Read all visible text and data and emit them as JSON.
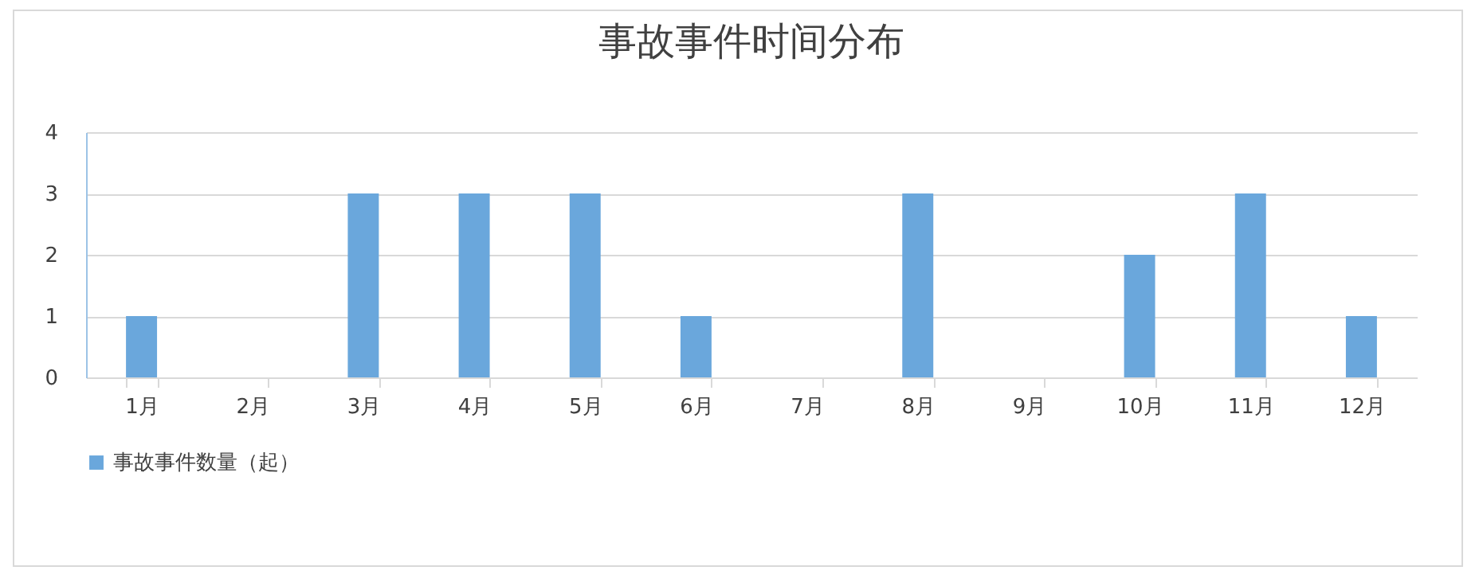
{
  "chart_data": {
    "type": "bar",
    "title": "事故事件时间分布",
    "categories": [
      "1月",
      "2月",
      "3月",
      "4月",
      "5月",
      "6月",
      "7月",
      "8月",
      "9月",
      "10月",
      "11月",
      "12月"
    ],
    "series": [
      {
        "name": "事故事件数量（起）",
        "color": "#6aa7dc",
        "values": [
          1,
          0,
          3,
          3,
          3,
          1,
          0,
          3,
          0,
          2,
          3,
          1
        ]
      }
    ],
    "ylim": [
      0,
      4
    ],
    "yticks": [
      0,
      1,
      2,
      3,
      4
    ],
    "grid": "y",
    "legend": "bottom"
  }
}
